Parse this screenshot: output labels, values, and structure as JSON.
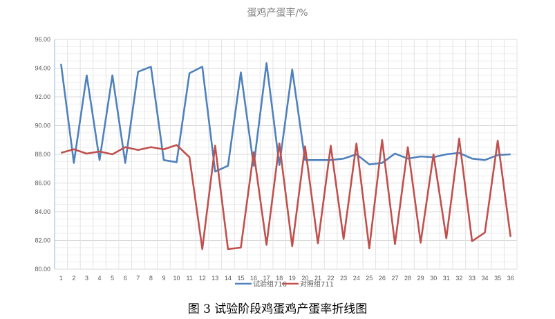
{
  "chart_data": {
    "type": "line",
    "title": "蛋鸡产蛋率/%",
    "caption": "图 3  试验阶段鸡蛋鸡产蛋率折线图",
    "x": [
      1,
      2,
      3,
      4,
      5,
      6,
      7,
      8,
      9,
      10,
      11,
      12,
      13,
      14,
      15,
      16,
      17,
      18,
      19,
      20,
      21,
      22,
      23,
      24,
      25,
      26,
      27,
      28,
      29,
      30,
      31,
      32,
      33,
      34,
      35,
      36
    ],
    "ylim": [
      80,
      96
    ],
    "yticks": [
      "80.00",
      "82.00",
      "84.00",
      "86.00",
      "88.00",
      "90.00",
      "92.00",
      "94.00",
      "96.00"
    ],
    "grid": true,
    "legend": "bottom",
    "series": [
      {
        "name": "试验组710",
        "color": "#4f81bd",
        "values": [
          94.3,
          87.4,
          93.5,
          87.6,
          93.5,
          87.4,
          93.75,
          94.1,
          87.6,
          87.45,
          93.65,
          94.1,
          86.8,
          87.2,
          93.7,
          87.2,
          94.35,
          87.25,
          93.9,
          87.6,
          87.6,
          87.6,
          87.7,
          88.0,
          87.3,
          87.4,
          88.05,
          87.7,
          87.85,
          87.8,
          88.0,
          88.1,
          87.7,
          87.6,
          87.95,
          88.0
        ]
      },
      {
        "name": "对照组711",
        "color": "#c0504d",
        "values": [
          88.1,
          88.35,
          88.05,
          88.2,
          88.0,
          88.5,
          88.3,
          88.5,
          88.35,
          88.65,
          87.8,
          81.4,
          88.6,
          81.4,
          81.5,
          88.15,
          81.7,
          88.75,
          81.6,
          88.55,
          81.8,
          88.6,
          82.1,
          88.75,
          81.45,
          89.0,
          81.75,
          88.5,
          81.85,
          88.0,
          82.15,
          89.1,
          81.95,
          82.55,
          88.95,
          82.25
        ]
      }
    ]
  }
}
